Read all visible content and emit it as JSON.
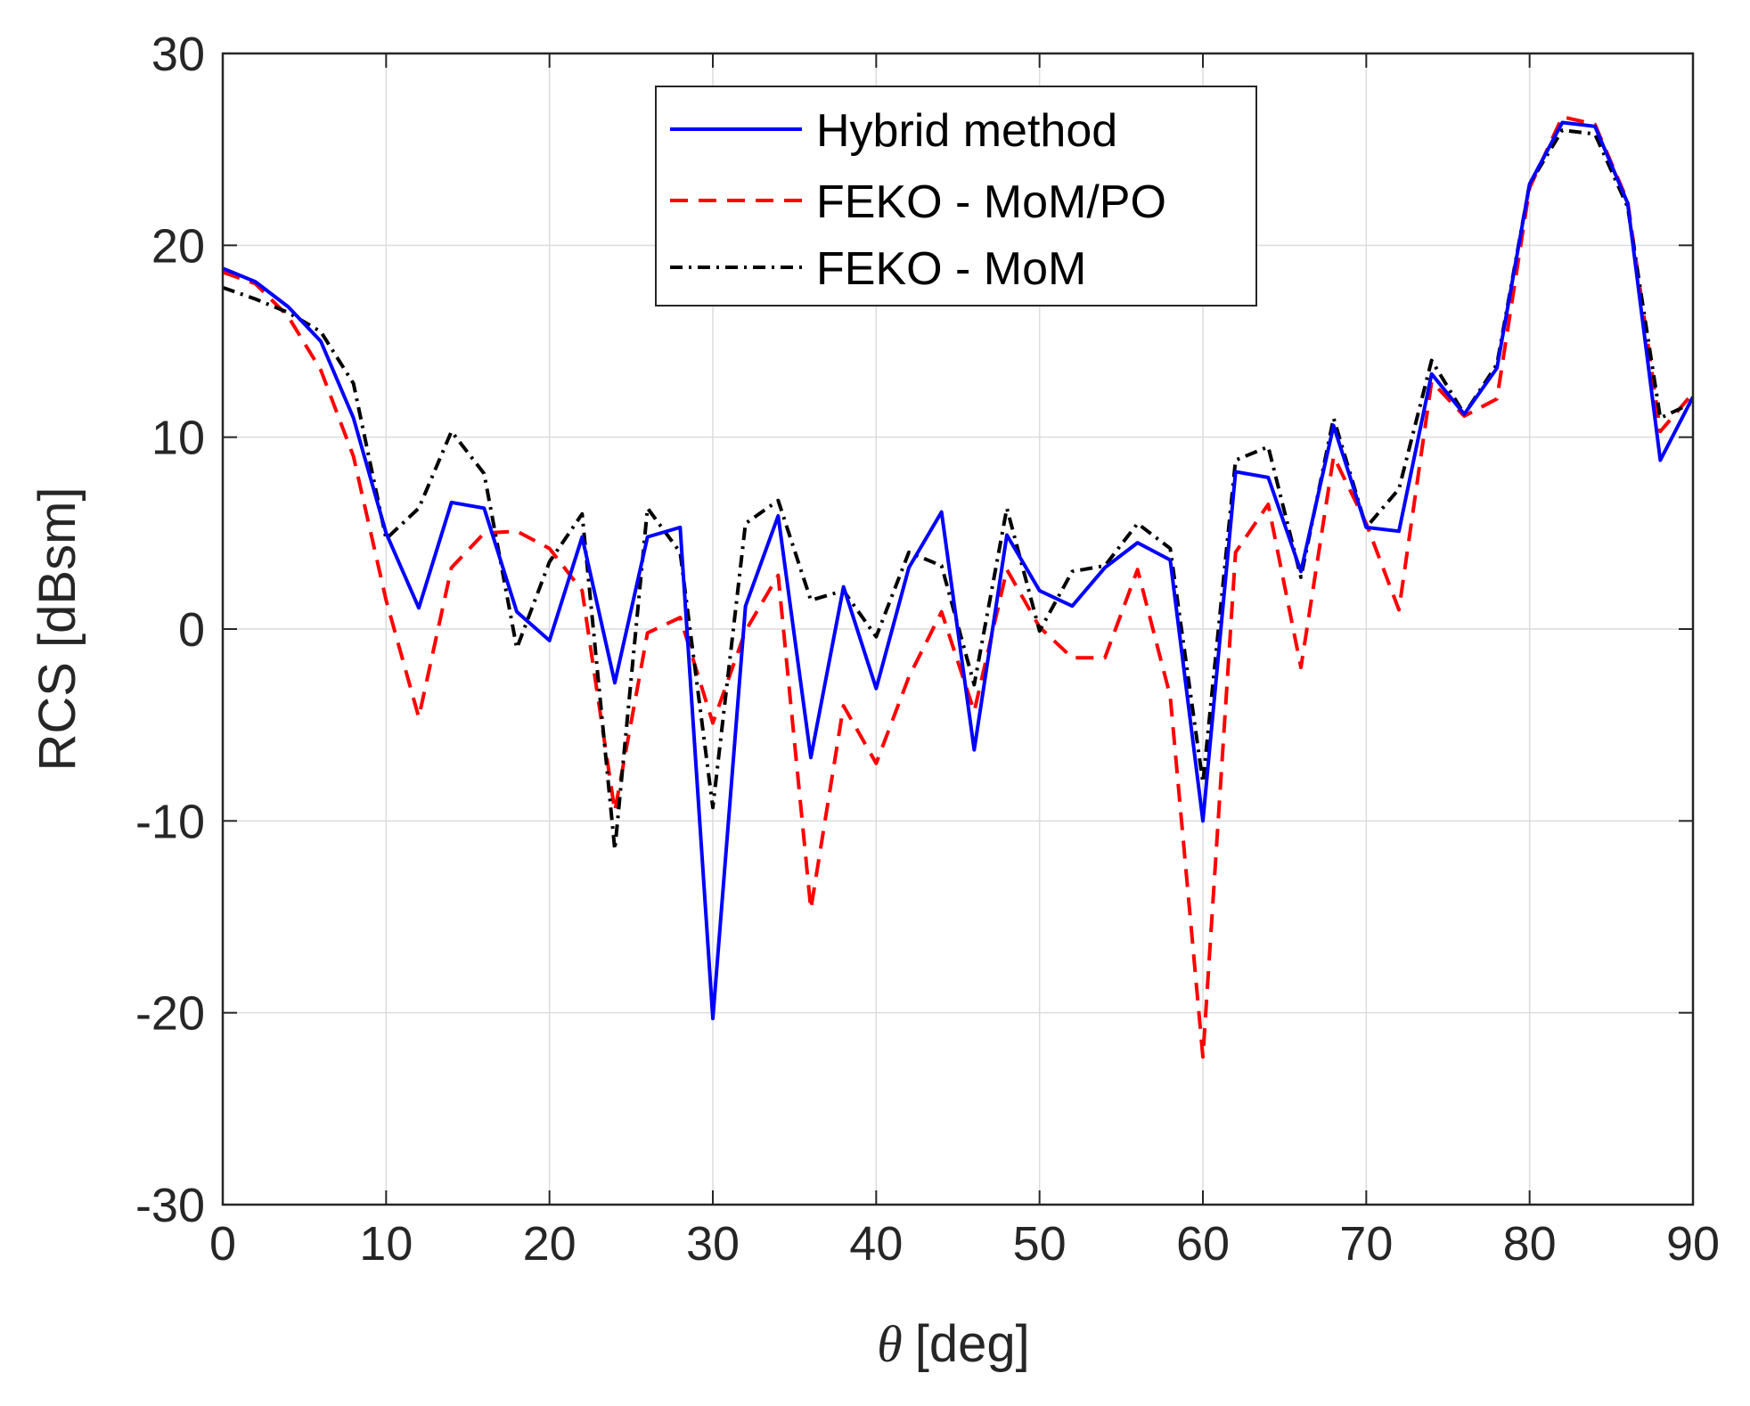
{
  "chart_data": {
    "type": "line",
    "title": "",
    "xlabel_symbol": "θ",
    "xlabel": "[deg]",
    "ylabel": "RCS [dBsm]",
    "xlim": [
      0,
      90
    ],
    "ylim": [
      -30,
      30
    ],
    "xticks": [
      0,
      10,
      20,
      30,
      40,
      50,
      60,
      70,
      80,
      90
    ],
    "yticks": [
      -30,
      -20,
      -10,
      0,
      10,
      20,
      30
    ],
    "xtick_labels": [
      "0",
      "10",
      "20",
      "30",
      "40",
      "50",
      "60",
      "70",
      "80",
      "90"
    ],
    "ytick_labels": [
      "-30",
      "-20",
      "-10",
      "0",
      "10",
      "20",
      "30"
    ],
    "grid": true,
    "legend_position": "top-center",
    "x": [
      0,
      2,
      4,
      6,
      8,
      10,
      12,
      14,
      16,
      18,
      20,
      22,
      24,
      26,
      28,
      30,
      32,
      34,
      36,
      38,
      40,
      42,
      44,
      46,
      48,
      50,
      52,
      54,
      56,
      58,
      60,
      62,
      64,
      66,
      68,
      70,
      72,
      74,
      76,
      78,
      80,
      82,
      84,
      86,
      88,
      90
    ],
    "series": [
      {
        "name": "Hybrid method",
        "color": "#0000ff",
        "style": "solid",
        "values": [
          18.8,
          18.1,
          16.8,
          15.0,
          11.0,
          5.0,
          1.1,
          6.6,
          6.3,
          0.9,
          -0.6,
          4.8,
          -2.8,
          4.8,
          5.3,
          -20.3,
          1.2,
          5.9,
          -6.7,
          2.2,
          -3.1,
          3.2,
          6.1,
          -6.3,
          4.9,
          2.0,
          1.2,
          3.2,
          4.5,
          3.6,
          -10.0,
          8.2,
          7.9,
          3.0,
          10.6,
          5.3,
          5.1,
          13.3,
          11.2,
          13.6,
          23.2,
          26.4,
          26.2,
          22.2,
          8.8,
          12.1
        ]
      },
      {
        "name": "FEKO - MoM/PO",
        "color": "#ff0000",
        "style": "dashed",
        "values": [
          18.6,
          18.0,
          16.3,
          13.5,
          9.0,
          1.5,
          -4.6,
          3.2,
          5.0,
          5.1,
          4.2,
          2.0,
          -9.5,
          -0.2,
          0.6,
          -4.9,
          -0.1,
          2.8,
          -14.6,
          -4.0,
          -7.0,
          -2.5,
          0.9,
          -4.3,
          3.1,
          0.1,
          -1.5,
          -1.5,
          3.1,
          -3.5,
          -22.3,
          4.0,
          6.5,
          -2.0,
          9.0,
          5.5,
          1.0,
          12.9,
          11.1,
          12.0,
          23.0,
          26.7,
          26.3,
          22.3,
          10.3,
          12.3
        ]
      },
      {
        "name": "FEKO - MoM",
        "color": "#000000",
        "style": "dash-dot",
        "values": [
          17.8,
          17.2,
          16.5,
          15.5,
          12.8,
          4.7,
          6.3,
          10.3,
          8.1,
          -1.0,
          3.5,
          6.0,
          -11.5,
          6.3,
          4.0,
          -9.3,
          5.5,
          6.7,
          1.5,
          2.0,
          -0.4,
          4.0,
          3.3,
          -2.9,
          6.3,
          -0.1,
          3.0,
          3.3,
          5.5,
          4.2,
          -8.0,
          8.8,
          9.5,
          2.7,
          11.0,
          5.3,
          7.3,
          14.0,
          11.2,
          13.8,
          23.2,
          26.0,
          25.8,
          22.0,
          11.0,
          11.8
        ]
      }
    ]
  }
}
